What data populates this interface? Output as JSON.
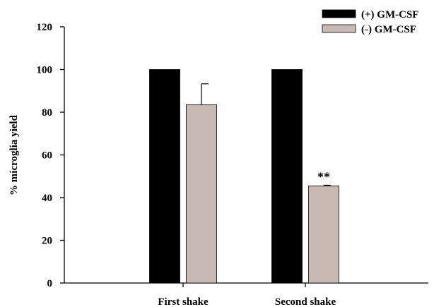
{
  "chart_data": {
    "type": "bar",
    "categories": [
      "First shake",
      "Second shake"
    ],
    "series": [
      {
        "name": "(+) GM-CSF",
        "values": [
          100,
          100
        ],
        "errors": [
          0,
          0
        ],
        "color": "#000000"
      },
      {
        "name": "(-)  GM-CSF",
        "values": [
          83.5,
          45.5
        ],
        "errors": [
          9.8,
          0.3
        ],
        "color": "#c8bab2"
      }
    ],
    "annotations": [
      {
        "text": "**",
        "category": "Second shake",
        "series": "(-)  GM-CSF"
      }
    ],
    "ylabel": "% microglia yield",
    "xlabel": "",
    "ylim": [
      0,
      120
    ],
    "yticks": [
      0,
      20,
      40,
      60,
      80,
      100,
      120
    ],
    "grid": false,
    "legend_position": "top-right"
  }
}
